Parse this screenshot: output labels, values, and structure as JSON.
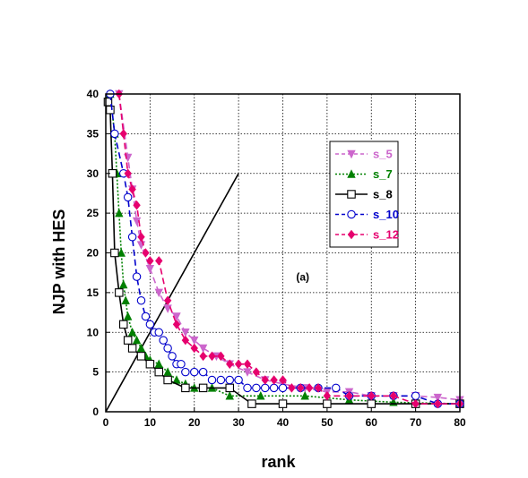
{
  "chart_data": {
    "type": "line",
    "xlabel": "rank",
    "ylabel": "NJP with HES",
    "xlim": [
      0,
      80
    ],
    "ylim": [
      0,
      40
    ],
    "xticks": [
      "0",
      "10",
      "20",
      "30",
      "40",
      "50",
      "60",
      "70",
      "80"
    ],
    "yticks": [
      "0",
      "5",
      "10",
      "15",
      "20",
      "25",
      "30",
      "35",
      "40"
    ],
    "grid": "dotted",
    "legend_position": "upper-right",
    "annotation": "(a)",
    "series": [
      {
        "name": "s_5",
        "color": "#cc66cc",
        "marker": "triangle-down",
        "line": "dashed",
        "points": [
          [
            3,
            40
          ],
          [
            5,
            32
          ],
          [
            6,
            28
          ],
          [
            7,
            24
          ],
          [
            8,
            21
          ],
          [
            10,
            18
          ],
          [
            12,
            15
          ],
          [
            14,
            13
          ],
          [
            16,
            12
          ],
          [
            18,
            10
          ],
          [
            20,
            9
          ],
          [
            22,
            8
          ],
          [
            25,
            7
          ],
          [
            28,
            6
          ],
          [
            32,
            5
          ],
          [
            36,
            4
          ],
          [
            40,
            3.5
          ],
          [
            45,
            3
          ],
          [
            50,
            2.5
          ],
          [
            55,
            2.5
          ],
          [
            60,
            2
          ],
          [
            65,
            2
          ],
          [
            70,
            2
          ],
          [
            75,
            1.8
          ],
          [
            80,
            1.5
          ]
        ]
      },
      {
        "name": "s_7",
        "color": "#008000",
        "marker": "triangle-up",
        "line": "dotted",
        "points": [
          [
            1,
            40
          ],
          [
            2,
            35
          ],
          [
            2.5,
            30
          ],
          [
            3,
            25
          ],
          [
            3.5,
            20
          ],
          [
            4,
            16
          ],
          [
            4.5,
            14
          ],
          [
            5,
            12
          ],
          [
            6,
            10
          ],
          [
            7,
            9
          ],
          [
            8,
            8
          ],
          [
            9,
            7
          ],
          [
            10,
            6.5
          ],
          [
            12,
            6
          ],
          [
            14,
            5
          ],
          [
            16,
            4
          ],
          [
            18,
            3.5
          ],
          [
            20,
            3
          ],
          [
            24,
            3
          ],
          [
            28,
            2
          ],
          [
            35,
            2
          ],
          [
            45,
            2
          ],
          [
            55,
            1.5
          ],
          [
            65,
            1.2
          ],
          [
            80,
            1
          ]
        ]
      },
      {
        "name": "s_8",
        "color": "#000000",
        "marker": "square",
        "line": "solid",
        "points": [
          [
            0.5,
            39
          ],
          [
            1,
            38
          ],
          [
            1.5,
            30
          ],
          [
            2,
            20
          ],
          [
            3,
            15
          ],
          [
            4,
            11
          ],
          [
            5,
            9
          ],
          [
            6,
            8
          ],
          [
            8,
            7
          ],
          [
            10,
            6
          ],
          [
            12,
            5
          ],
          [
            14,
            4
          ],
          [
            18,
            3
          ],
          [
            22,
            3
          ],
          [
            28,
            3
          ],
          [
            33,
            1
          ],
          [
            40,
            1
          ],
          [
            50,
            1
          ],
          [
            60,
            1
          ],
          [
            70,
            1
          ],
          [
            80,
            1
          ]
        ]
      },
      {
        "name": "s_10",
        "color": "#0000cc",
        "marker": "circle",
        "line": "dashed",
        "points": [
          [
            1,
            40
          ],
          [
            2,
            35
          ],
          [
            4,
            30
          ],
          [
            5,
            27
          ],
          [
            6,
            22
          ],
          [
            7,
            17
          ],
          [
            8,
            14
          ],
          [
            9,
            12
          ],
          [
            10,
            11
          ],
          [
            11,
            10
          ],
          [
            12,
            10
          ],
          [
            13,
            9
          ],
          [
            14,
            8
          ],
          [
            15,
            7
          ],
          [
            16,
            6
          ],
          [
            17,
            6
          ],
          [
            18,
            5
          ],
          [
            20,
            5
          ],
          [
            22,
            5
          ],
          [
            24,
            4
          ],
          [
            26,
            4
          ],
          [
            28,
            4
          ],
          [
            30,
            4
          ],
          [
            32,
            3
          ],
          [
            34,
            3
          ],
          [
            36,
            3
          ],
          [
            38,
            3
          ],
          [
            40,
            3
          ],
          [
            44,
            3
          ],
          [
            48,
            3
          ],
          [
            52,
            3
          ],
          [
            55,
            2
          ],
          [
            60,
            2
          ],
          [
            65,
            2
          ],
          [
            70,
            2
          ],
          [
            75,
            1
          ],
          [
            80,
            1
          ]
        ]
      },
      {
        "name": "s_12",
        "color": "#e6006e",
        "marker": "diamond",
        "line": "dashed",
        "points": [
          [
            3,
            40
          ],
          [
            4,
            35
          ],
          [
            5,
            30
          ],
          [
            6,
            28
          ],
          [
            7,
            26
          ],
          [
            8,
            22
          ],
          [
            9,
            20
          ],
          [
            10,
            19
          ],
          [
            12,
            19
          ],
          [
            14,
            14
          ],
          [
            16,
            11
          ],
          [
            18,
            9
          ],
          [
            20,
            8
          ],
          [
            22,
            7
          ],
          [
            24,
            7
          ],
          [
            26,
            7
          ],
          [
            28,
            6
          ],
          [
            30,
            6
          ],
          [
            32,
            6
          ],
          [
            34,
            5
          ],
          [
            36,
            4
          ],
          [
            38,
            4
          ],
          [
            40,
            4
          ],
          [
            42,
            3
          ],
          [
            44,
            3
          ],
          [
            46,
            3
          ],
          [
            48,
            3
          ],
          [
            50,
            2
          ],
          [
            55,
            2
          ],
          [
            60,
            2
          ],
          [
            65,
            2
          ],
          [
            70,
            1
          ],
          [
            75,
            1
          ],
          [
            80,
            1
          ]
        ]
      }
    ],
    "reference_line": {
      "color": "#000000",
      "points": [
        [
          0,
          0
        ],
        [
          30,
          30
        ]
      ]
    }
  }
}
